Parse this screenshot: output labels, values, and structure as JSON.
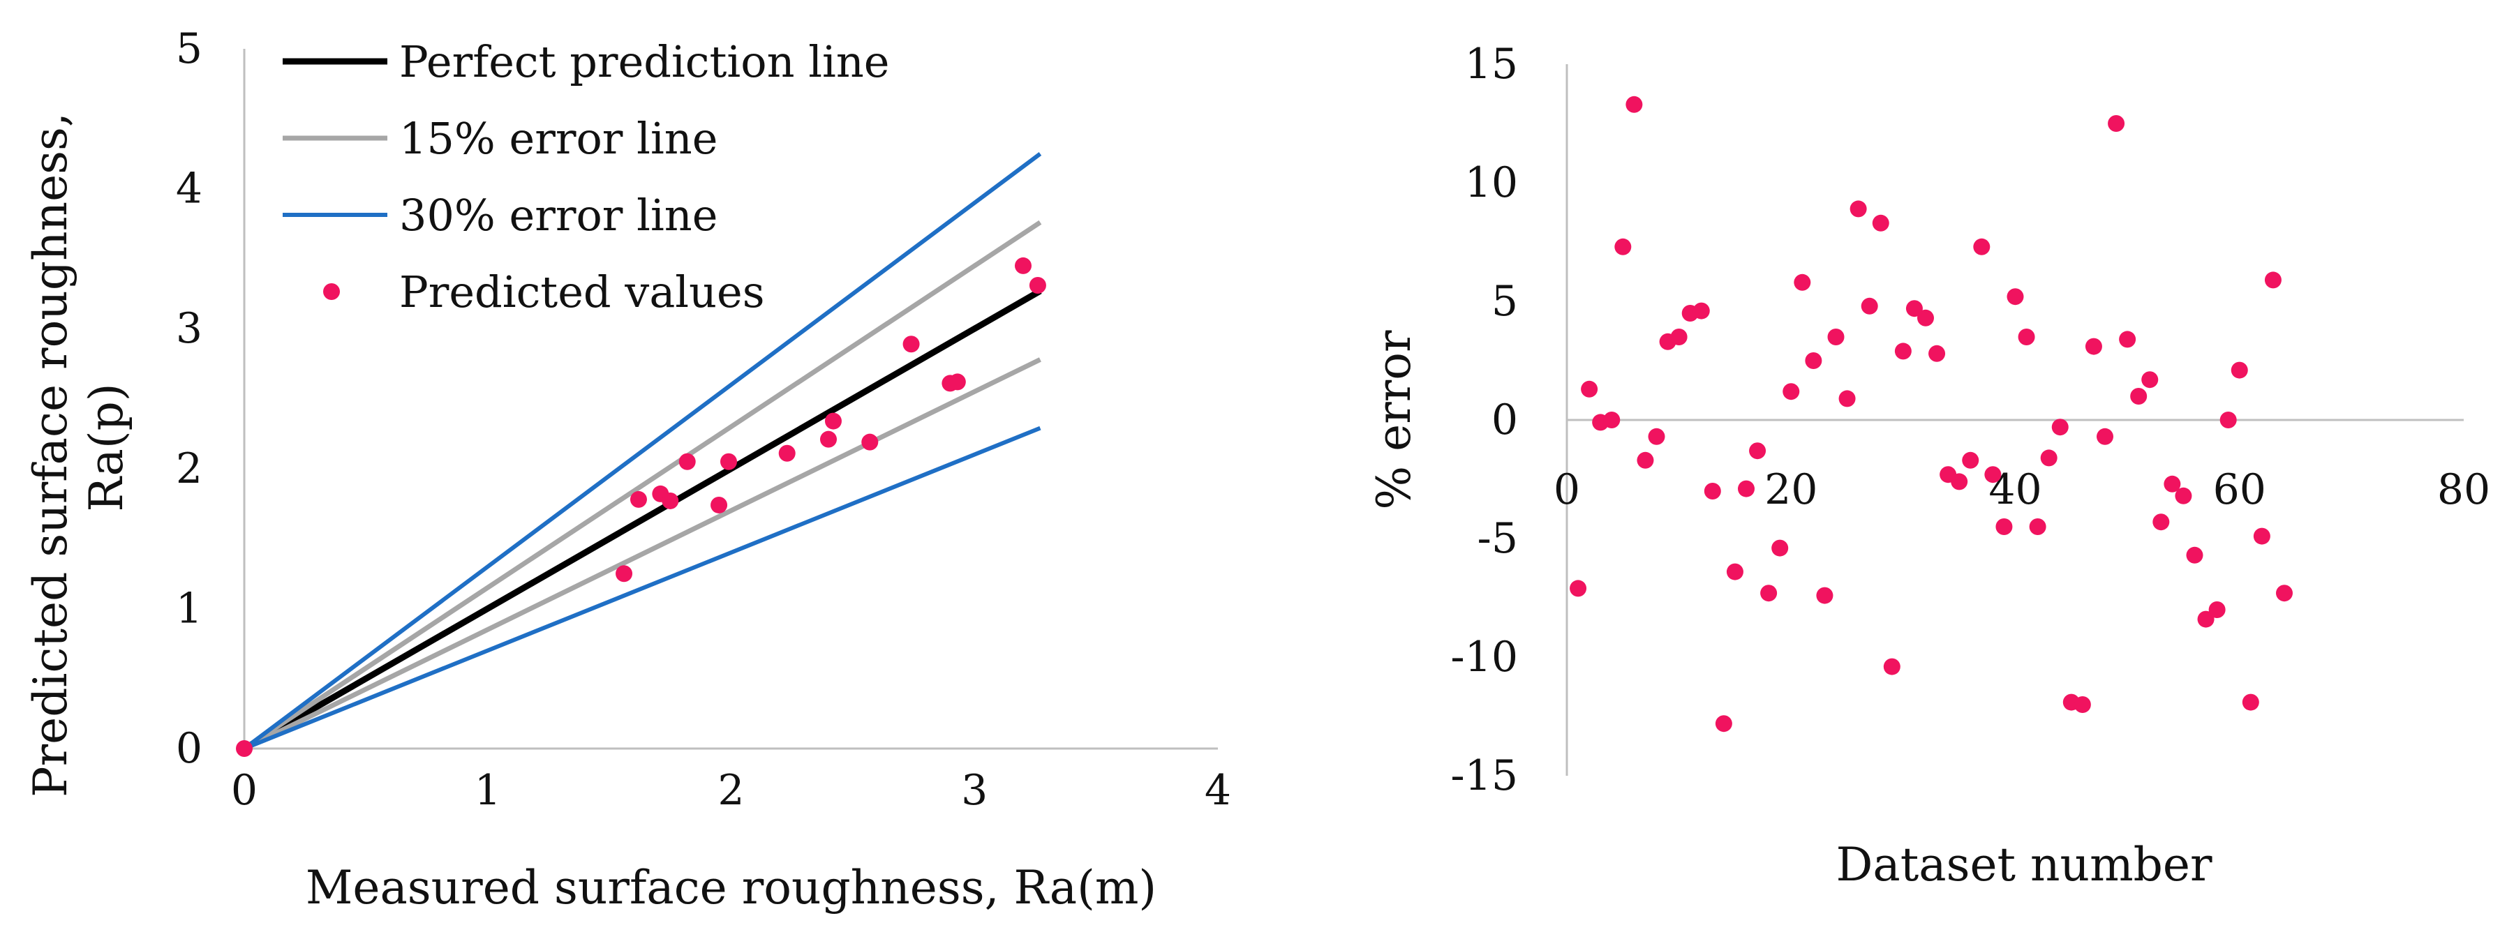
{
  "chart_data": [
    {
      "type": "scatter",
      "title": "",
      "xlabel": "Measured surface roughness, Ra(m)",
      "ylabel_lines": [
        "Predicted surface roughness,",
        "Ra(p)"
      ],
      "xlim": [
        0,
        4
      ],
      "ylim": [
        0,
        5
      ],
      "x_ticks": [
        "0",
        "1",
        "2",
        "3",
        "4"
      ],
      "y_ticks": [
        "0",
        "1",
        "2",
        "3",
        "4",
        "5"
      ],
      "legend_position": "top-left",
      "series": [
        {
          "name": "Perfect prediction line",
          "kind": "line",
          "color": "#000000",
          "points": [
            [
              0,
              0
            ],
            [
              3.27,
              3.27
            ]
          ]
        },
        {
          "name": "15% error line",
          "kind": "line",
          "color": "#a6a6a6",
          "points": [
            [
              0,
              0
            ],
            [
              3.27,
              3.76
            ]
          ]
        },
        {
          "name": "15% error line (lower)",
          "kind": "line",
          "color": "#a6a6a6",
          "legend": false,
          "points": [
            [
              0,
              0
            ],
            [
              3.27,
              2.78
            ]
          ]
        },
        {
          "name": "30% error line",
          "kind": "line",
          "color": "#1f6fc5",
          "points": [
            [
              0,
              0
            ],
            [
              3.27,
              4.25
            ]
          ]
        },
        {
          "name": "30% error line (lower)",
          "kind": "line",
          "color": "#1f6fc5",
          "legend": false,
          "points": [
            [
              0,
              0
            ],
            [
              3.27,
              2.29
            ]
          ]
        },
        {
          "name": "Predicted values",
          "kind": "scatter",
          "color": "#f0135f",
          "points": [
            [
              0,
              0
            ],
            [
              1.56,
              1.25
            ],
            [
              1.62,
              1.78
            ],
            [
              1.71,
              1.82
            ],
            [
              1.75,
              1.77
            ],
            [
              1.82,
              2.05
            ],
            [
              1.95,
              1.74
            ],
            [
              1.99,
              2.05
            ],
            [
              2.23,
              2.11
            ],
            [
              2.4,
              2.21
            ],
            [
              2.42,
              2.34
            ],
            [
              2.57,
              2.19
            ],
            [
              2.74,
              2.89
            ],
            [
              2.9,
              2.61
            ],
            [
              2.93,
              2.62
            ],
            [
              3.2,
              3.45
            ],
            [
              3.26,
              3.31
            ]
          ]
        }
      ]
    },
    {
      "type": "scatter",
      "title": "",
      "xlabel": "Dataset number",
      "ylabel": "% error",
      "xlim": [
        0,
        80
      ],
      "ylim": [
        -15,
        15
      ],
      "x_ticks": [
        "0",
        "20",
        "40",
        "60",
        "80"
      ],
      "y_ticks": [
        "-15",
        "-10",
        "-5",
        "0",
        "5",
        "10",
        "15"
      ],
      "series": [
        {
          "name": "% error",
          "kind": "scatter",
          "color": "#f0135f",
          "points": [
            [
              1,
              -7.1
            ],
            [
              2,
              1.3
            ],
            [
              3,
              -0.1
            ],
            [
              4,
              0
            ],
            [
              5,
              7.3
            ],
            [
              6,
              13.3
            ],
            [
              7,
              -1.7
            ],
            [
              8,
              -0.7
            ],
            [
              9,
              3.3
            ],
            [
              10,
              3.5
            ],
            [
              11,
              4.5
            ],
            [
              12,
              4.6
            ],
            [
              13,
              -3
            ],
            [
              14,
              -12.8
            ],
            [
              15,
              -6.4
            ],
            [
              16,
              -2.9
            ],
            [
              17,
              -1.3
            ],
            [
              18,
              -7.3
            ],
            [
              19,
              -5.4
            ],
            [
              20,
              1.2
            ],
            [
              21,
              5.8
            ],
            [
              22,
              2.5
            ],
            [
              23,
              -7.4
            ],
            [
              24,
              3.5
            ],
            [
              25,
              0.9
            ],
            [
              26,
              8.9
            ],
            [
              27,
              4.8
            ],
            [
              28,
              8.3
            ],
            [
              29,
              -10.4
            ],
            [
              30,
              2.9
            ],
            [
              31,
              4.7
            ],
            [
              32,
              4.3
            ],
            [
              33,
              2.8
            ],
            [
              34,
              -2.3
            ],
            [
              35,
              -2.6
            ],
            [
              36,
              -1.7
            ],
            [
              37,
              7.3
            ],
            [
              38,
              -2.3
            ],
            [
              39,
              -4.5
            ],
            [
              40,
              5.2
            ],
            [
              41,
              3.5
            ],
            [
              42,
              -4.5
            ],
            [
              43,
              -1.6
            ],
            [
              44,
              -0.3
            ],
            [
              45,
              -11.9
            ],
            [
              46,
              -12
            ],
            [
              47,
              3.1
            ],
            [
              48,
              -0.7
            ],
            [
              49,
              12.5
            ],
            [
              50,
              3.4
            ],
            [
              51,
              1
            ],
            [
              52,
              1.7
            ],
            [
              53,
              -4.3
            ],
            [
              54,
              -2.7
            ],
            [
              55,
              -3.2
            ],
            [
              56,
              -5.7
            ],
            [
              57,
              -8.4
            ],
            [
              58,
              -8
            ],
            [
              59,
              0
            ],
            [
              60,
              2.1
            ],
            [
              61,
              -11.9
            ],
            [
              62,
              -4.9
            ],
            [
              63,
              5.9
            ],
            [
              64,
              -7.3
            ]
          ]
        }
      ]
    }
  ]
}
